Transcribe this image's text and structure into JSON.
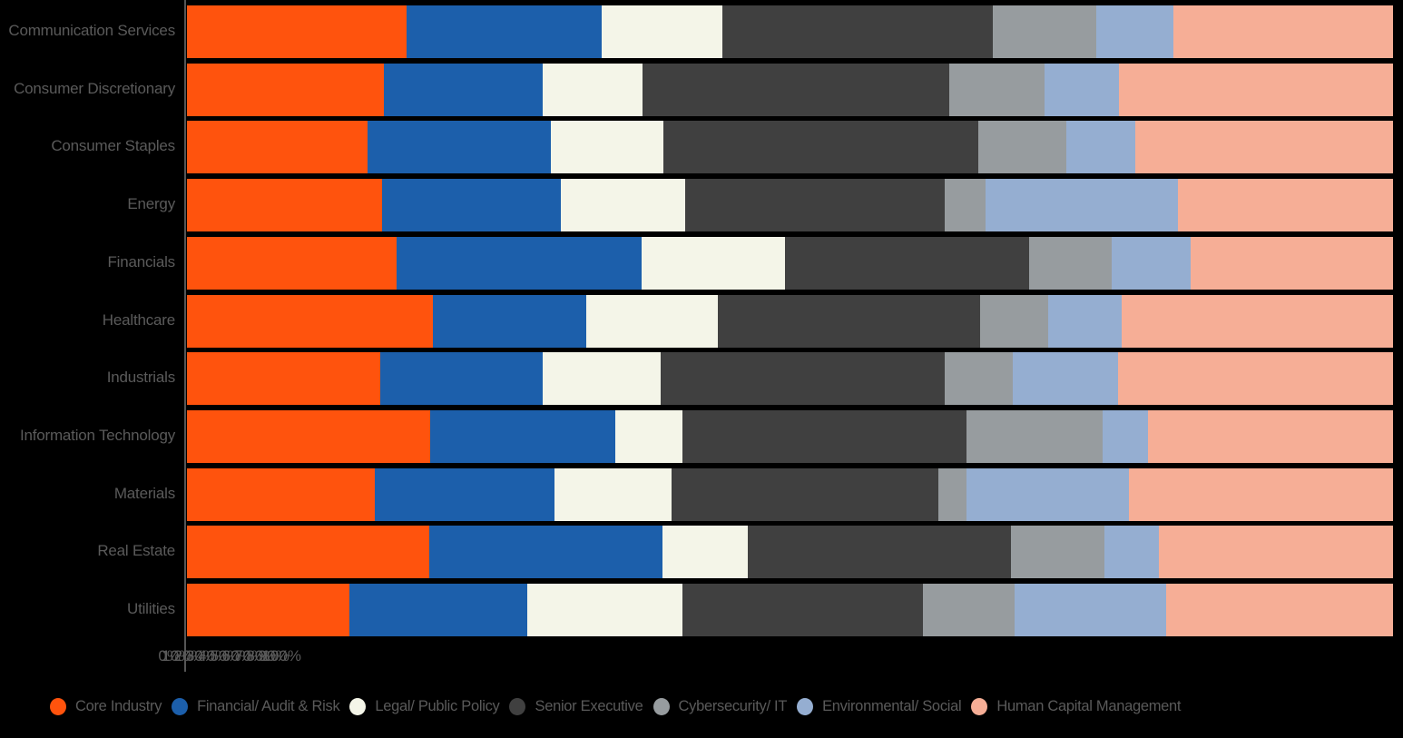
{
  "chart_data": {
    "type": "bar",
    "orientation": "horizontal",
    "stacked": "percent",
    "title": "",
    "xlabel": "",
    "ylabel": "",
    "xlim": [
      0,
      100
    ],
    "x_ticks": [
      "0%",
      "10%",
      "20%",
      "30%",
      "40%",
      "50%",
      "60%",
      "70%",
      "80%",
      "90%",
      "100%"
    ],
    "grid": false,
    "legend_position": "bottom",
    "categories": [
      "Communication Services",
      "Consumer Discretionary",
      "Consumer Staples",
      "Energy",
      "Financials",
      "Healthcare",
      "Industrials",
      "Information Technology",
      "Materials",
      "Real Estate",
      "Utilities"
    ],
    "series": [
      {
        "name": "Core Industry",
        "color": "#FF530D",
        "values": [
          18.2,
          16.3,
          15.0,
          16.2,
          17.4,
          20.4,
          16.0,
          20.2,
          15.6,
          20.1,
          13.5
        ]
      },
      {
        "name": "Financial/ Audit & Risk",
        "color": "#1C5FAB",
        "values": [
          16.2,
          13.2,
          15.2,
          14.8,
          20.3,
          12.7,
          13.5,
          15.3,
          14.9,
          19.3,
          14.7
        ]
      },
      {
        "name": "Legal/ Public Policy",
        "color": "#F4F5E8",
        "values": [
          10.0,
          8.3,
          9.3,
          10.3,
          11.9,
          10.9,
          9.8,
          5.6,
          9.7,
          7.1,
          12.9
        ]
      },
      {
        "name": "Senior Executive",
        "color": "#404040",
        "values": [
          22.4,
          25.4,
          26.1,
          21.5,
          20.2,
          21.8,
          23.5,
          23.5,
          22.1,
          21.8,
          19.9
        ]
      },
      {
        "name": "Cybersecurity/ IT",
        "color": "#979C9F",
        "values": [
          8.6,
          7.9,
          7.3,
          3.4,
          6.9,
          5.6,
          5.7,
          11.3,
          2.3,
          7.8,
          7.6
        ]
      },
      {
        "name": "Environmental/ Social",
        "color": "#95AED1",
        "values": [
          6.4,
          6.2,
          5.7,
          16.0,
          6.5,
          6.1,
          8.7,
          3.8,
          13.5,
          4.5,
          12.6
        ]
      },
      {
        "name": "Human Capital Management",
        "color": "#F6AE96",
        "values": [
          18.2,
          22.7,
          21.4,
          17.8,
          16.8,
          22.5,
          22.8,
          20.3,
          21.9,
          19.4,
          18.8
        ]
      }
    ]
  }
}
